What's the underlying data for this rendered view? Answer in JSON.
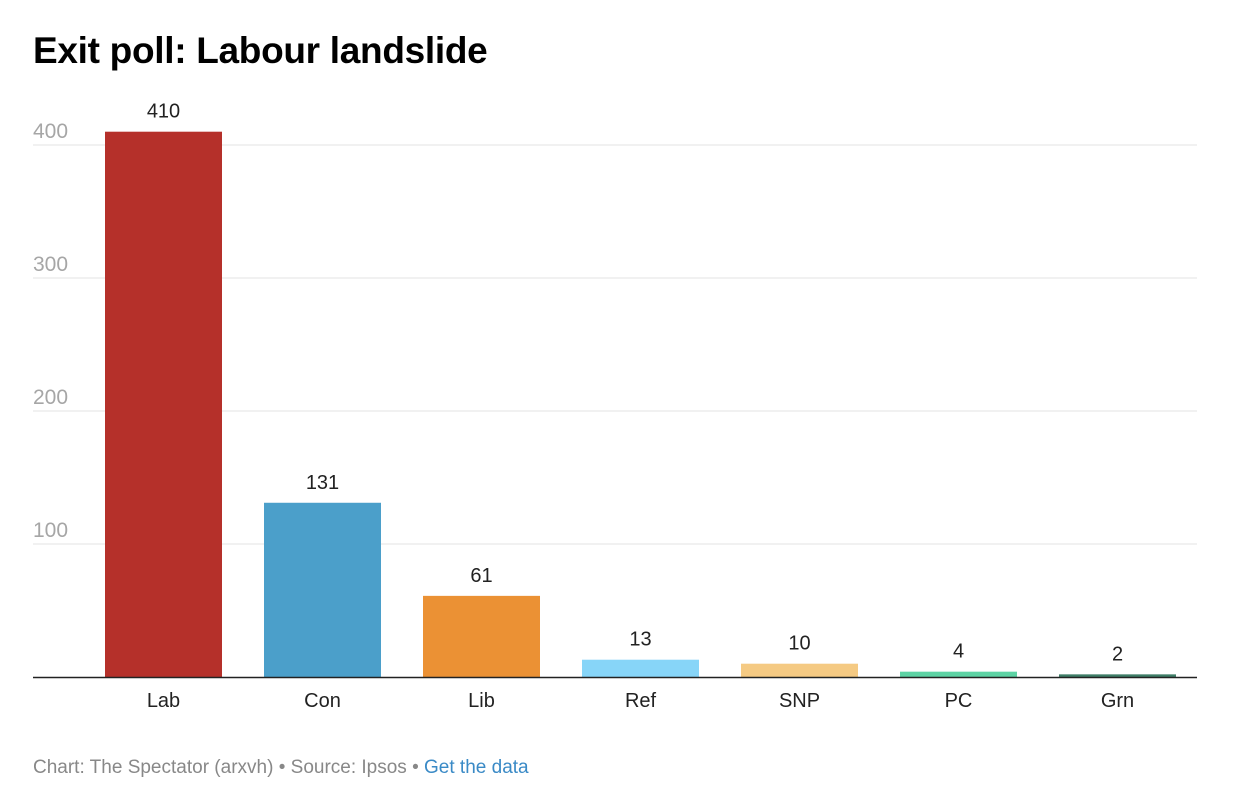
{
  "chart_data": {
    "type": "bar",
    "title": "Exit poll: Labour landslide",
    "xlabel": "",
    "ylabel": "",
    "categories": [
      "Lab",
      "Con",
      "Lib",
      "Ref",
      "SNP",
      "PC",
      "Grn"
    ],
    "values": [
      410,
      131,
      61,
      13,
      10,
      4,
      2
    ],
    "colors": [
      "#b5302a",
      "#4b9fca",
      "#eb9134",
      "#87d5f8",
      "#f5ca83",
      "#5dd3a4",
      "#3f7e68"
    ],
    "data_labels": [
      "410",
      "131",
      "61",
      "13",
      "10",
      "4",
      "2"
    ],
    "yticks": [
      100,
      200,
      300,
      400
    ],
    "ytick_labels": [
      "100",
      "200",
      "300",
      "400"
    ],
    "ylim": [
      0,
      410
    ],
    "grid": true,
    "legend": "none"
  },
  "footer": {
    "chart_credit": "Chart: The Spectator (arxvh)",
    "separator": "•",
    "source": "Source: Ipsos",
    "link_label": "Get the data"
  }
}
